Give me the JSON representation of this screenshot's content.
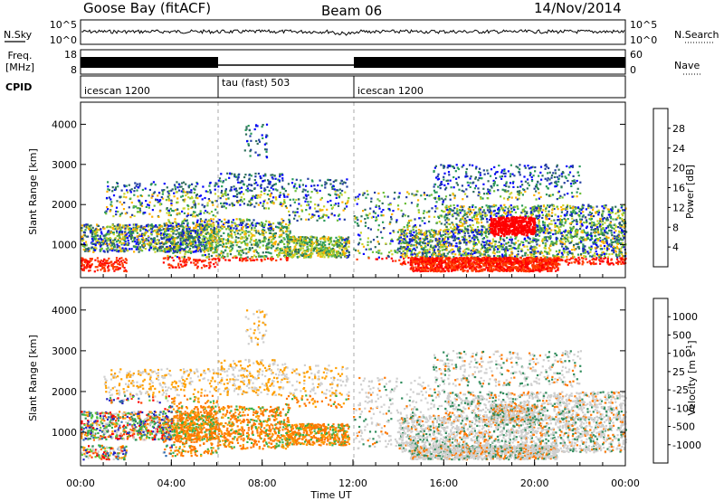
{
  "header": {
    "station": "Goose Bay (fitACF)",
    "beam": "Beam 06",
    "date": "14/Nov/2014"
  },
  "top_panels": {
    "nsky_label": "N.Sky",
    "nsky_ticks": [
      "10^5",
      "10^0"
    ],
    "nsearch_label": "N.Search",
    "nsearch_ticks": [
      "10^5",
      "10^0"
    ],
    "freq_label_1": "Freq.",
    "freq_label_2": "[MHz]",
    "freq_ticks": [
      "18",
      "8"
    ],
    "nave_label": "Nave",
    "nave_ticks": [
      "60",
      "0"
    ],
    "cpid_label": "CPID"
  },
  "chart_data": [
    {
      "type": "line",
      "panel": "N.Sky / N.Search",
      "ylim": [
        "10^0",
        "10^5"
      ],
      "xlim": [
        "00:00",
        "24:00"
      ]
    },
    {
      "type": "line",
      "panel": "Freq. / Nave",
      "ylim_left": [
        8,
        18
      ],
      "ylim_right": [
        0,
        60
      ],
      "segments": [
        {
          "start": 0,
          "end": 6,
          "level": "high"
        },
        {
          "start": 6,
          "end": 12,
          "level": "low"
        },
        {
          "start": 12,
          "end": 24,
          "level": "high"
        }
      ]
    },
    {
      "type": "table",
      "panel": "CPID",
      "modes": [
        {
          "start": 0,
          "label": "icescan 1200"
        },
        {
          "start": 6,
          "label": "tau (fast) 503"
        },
        {
          "start": 12,
          "label": "icescan 1200"
        }
      ]
    },
    {
      "type": "heatmap",
      "panel": "Power",
      "ylabel": "Slant Range [km]",
      "yticks": [
        1000,
        2000,
        3000,
        4000
      ],
      "ylim": [
        180,
        4550
      ],
      "colorbar_label": "Power [dB]",
      "colorbar_ticks": [
        "28",
        "24",
        "20",
        "16",
        "12",
        "8",
        "4"
      ],
      "colorbar_colors": [
        "#0000ff",
        "#203ca0",
        "#2e6e5c",
        "#2a9a5a",
        "#6cbf3a",
        "#c8d42a",
        "#ffb000",
        "#ff7a00",
        "#ff3c00",
        "#ff0000"
      ]
    },
    {
      "type": "heatmap",
      "panel": "Velocity",
      "ylabel": "Slant Range [km]",
      "yticks": [
        1000,
        2000,
        3000,
        4000
      ],
      "ylim": [
        180,
        4550
      ],
      "colorbar_label": "Velocity [m s^-1]",
      "colorbar_ticks": [
        "1000",
        "500",
        "100",
        "25",
        "-25",
        "-100",
        "-500",
        "-1000"
      ],
      "colorbar_colors": [
        "#2020c0",
        "#2e6bb0",
        "#2f8c5c",
        "#38b04a",
        "#62cc36",
        "#cfcfcf",
        "#cfcfcf",
        "#ffa000",
        "#ff7800",
        "#ff4000",
        "#ff0000"
      ],
      "xlabel": "Time UT",
      "xticks": [
        "00:00",
        "04:00",
        "08:00",
        "12:00",
        "16:00",
        "20:00",
        "00:00"
      ]
    }
  ]
}
